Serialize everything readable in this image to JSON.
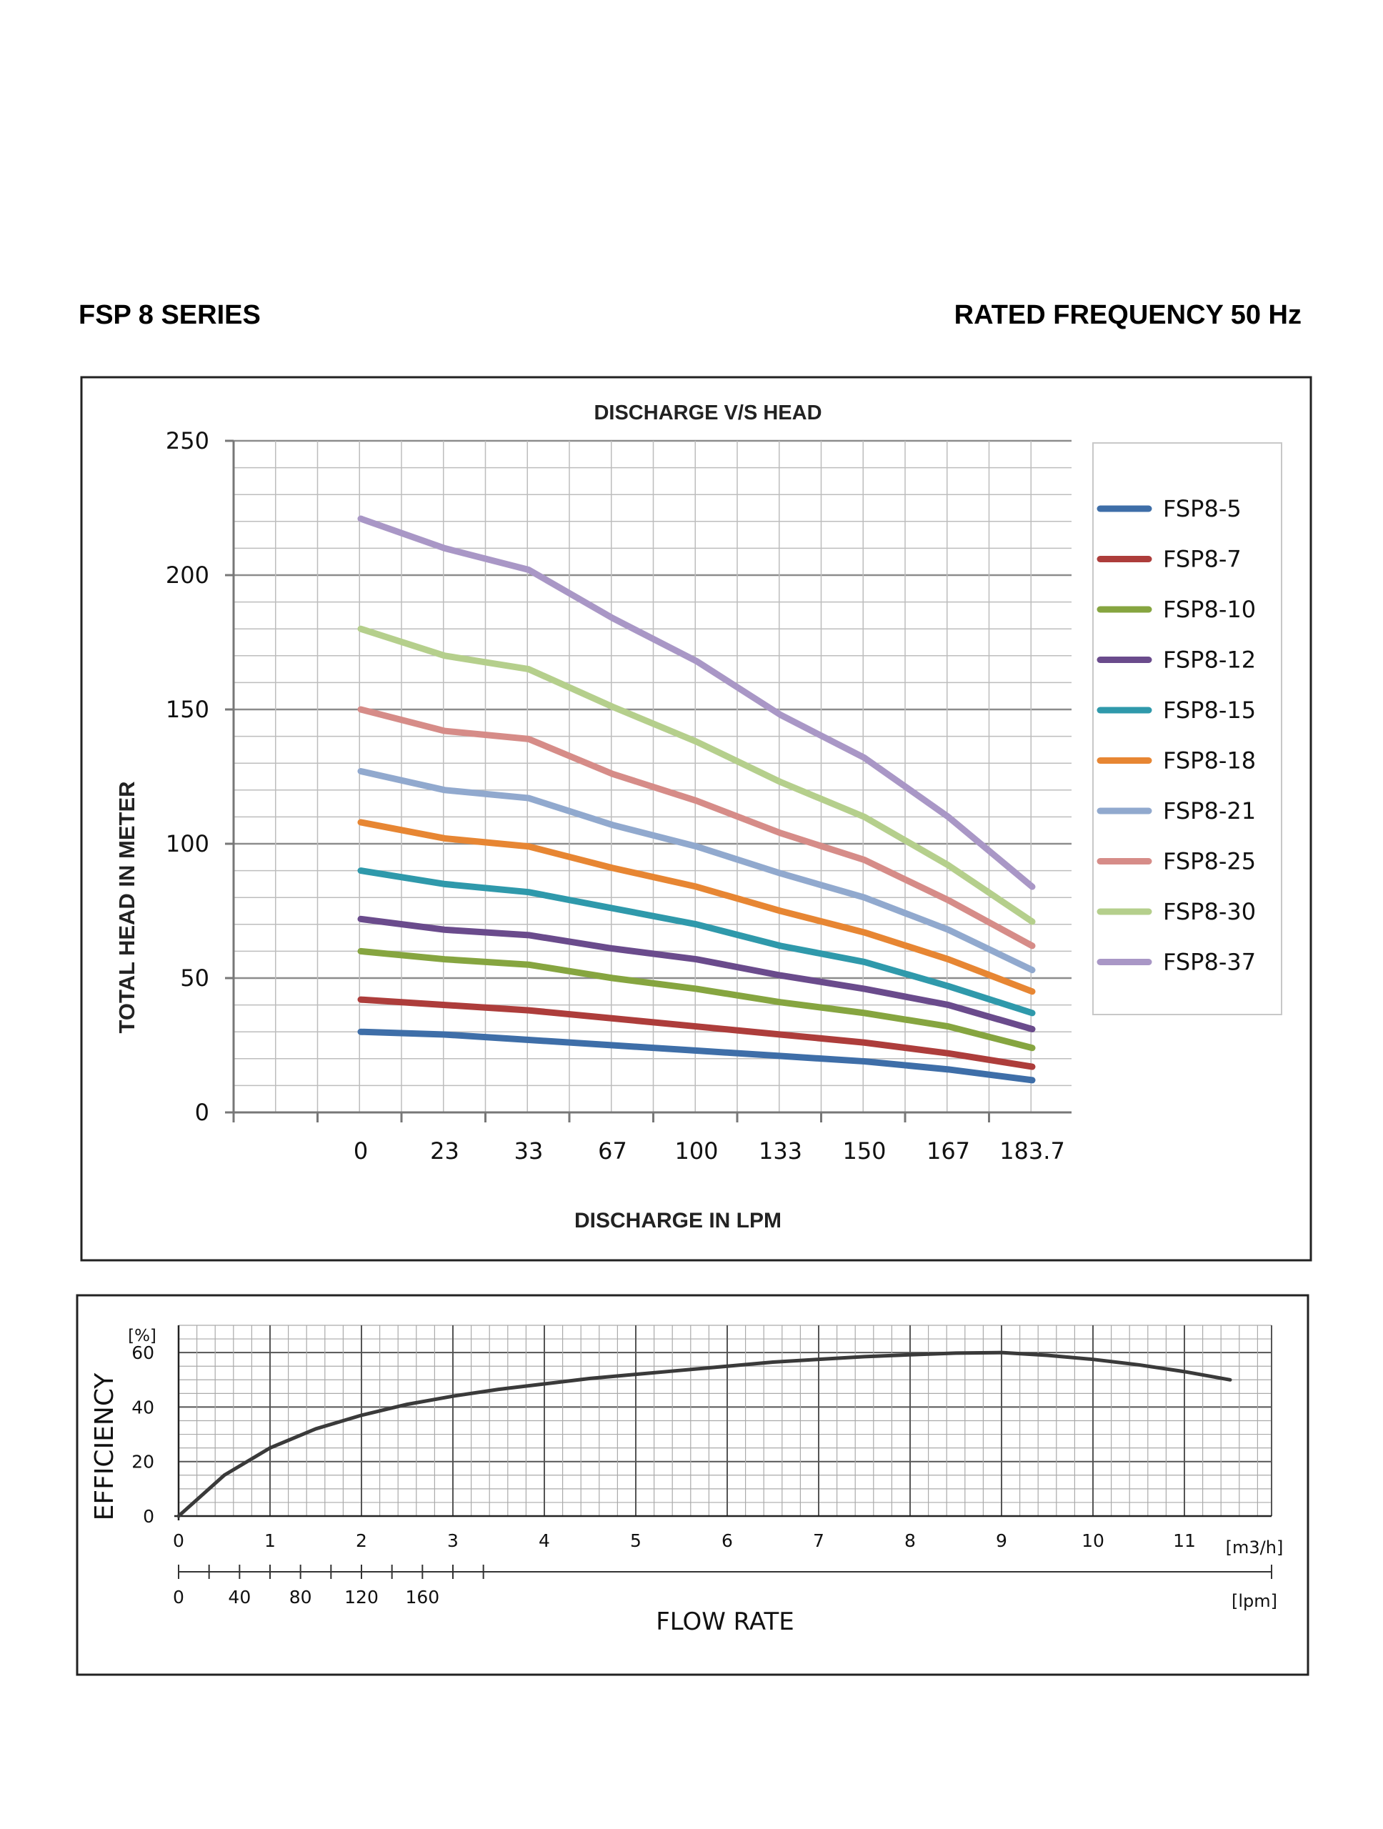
{
  "header": {
    "series_title": "FSP 8 SERIES",
    "frequency": "RATED FREQUENCY 50 Hz"
  },
  "chart_data": [
    {
      "type": "line",
      "title": "DISCHARGE V/S HEAD",
      "xlabel": "DISCHARGE IN LPM",
      "ylabel": "TOTAL HEAD IN METER",
      "categories": [
        "0",
        "23",
        "33",
        "67",
        "100",
        "133",
        "150",
        "167",
        "183.7"
      ],
      "ylim": [
        0,
        250
      ],
      "yticks": [
        "0",
        "50",
        "100",
        "150",
        "200",
        "250"
      ],
      "grid": true,
      "legend": "right",
      "series": [
        {
          "name": "FSP8-5",
          "color": "#3e6ea8",
          "values": [
            30,
            29,
            27,
            25,
            23,
            21,
            19,
            16,
            12
          ]
        },
        {
          "name": "FSP8-7",
          "color": "#ad3d3b",
          "values": [
            42,
            40,
            38,
            35,
            32,
            29,
            26,
            22,
            17
          ]
        },
        {
          "name": "FSP8-10",
          "color": "#86a540",
          "values": [
            60,
            57,
            55,
            50,
            46,
            41,
            37,
            32,
            24
          ]
        },
        {
          "name": "FSP8-12",
          "color": "#6a4b8c",
          "values": [
            72,
            68,
            66,
            61,
            57,
            51,
            46,
            40,
            31
          ]
        },
        {
          "name": "FSP8-15",
          "color": "#2f99ab",
          "values": [
            90,
            85,
            82,
            76,
            70,
            62,
            56,
            47,
            37
          ]
        },
        {
          "name": "FSP8-18",
          "color": "#e78633",
          "values": [
            108,
            102,
            99,
            91,
            84,
            75,
            67,
            57,
            45
          ]
        },
        {
          "name": "FSP8-21",
          "color": "#91a9ce",
          "values": [
            127,
            120,
            117,
            107,
            99,
            89,
            80,
            68,
            53
          ]
        },
        {
          "name": "FSP8-25",
          "color": "#d68c88",
          "values": [
            150,
            142,
            139,
            126,
            116,
            104,
            94,
            79,
            62
          ]
        },
        {
          "name": "FSP8-30",
          "color": "#b5cf8c",
          "values": [
            180,
            170,
            165,
            151,
            138,
            123,
            110,
            92,
            71
          ]
        },
        {
          "name": "FSP8-37",
          "color": "#a997c6",
          "values": [
            221,
            210,
            202,
            184,
            168,
            148,
            132,
            110,
            84
          ]
        }
      ]
    },
    {
      "type": "line",
      "title": "",
      "xlabel": "FLOW RATE",
      "ylabel": "EFFICIENCY",
      "yunit": "[%]",
      "xunit": "[m3/h]",
      "xunit2": "[lpm]",
      "ylim": [
        0,
        70
      ],
      "xlim": [
        0,
        12
      ],
      "yticks": [
        "0",
        "20",
        "40",
        "60"
      ],
      "xticks": [
        "0",
        "1",
        "2",
        "3",
        "4",
        "5",
        "6",
        "7",
        "8",
        "9",
        "10",
        "11"
      ],
      "xticks2": [
        "0",
        "40",
        "80",
        "120",
        "160"
      ],
      "grid": true,
      "series": [
        {
          "color": "#3a3a3a",
          "x": [
            0,
            0.5,
            1,
            1.5,
            2,
            2.5,
            3,
            3.5,
            4,
            4.5,
            5,
            5.5,
            6,
            6.5,
            7,
            7.5,
            8,
            8.5,
            9,
            9.5,
            10,
            10.5,
            11,
            11.5
          ],
          "values": [
            0,
            15,
            25,
            32,
            37,
            41,
            44,
            46.5,
            48.5,
            50.5,
            52,
            53.5,
            55,
            56.5,
            57.5,
            58.5,
            59.2,
            59.8,
            60,
            59,
            57.5,
            55.5,
            53,
            50
          ]
        }
      ]
    }
  ]
}
